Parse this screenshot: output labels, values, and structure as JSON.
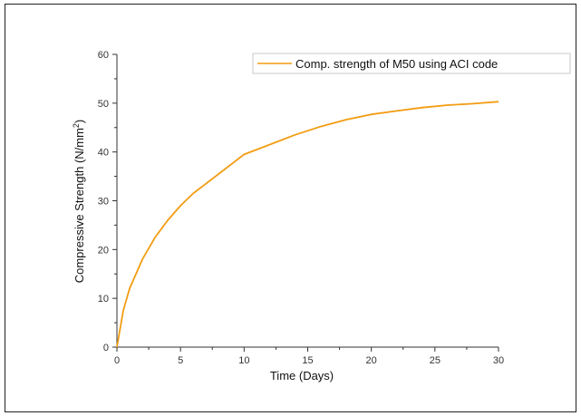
{
  "chart_data": {
    "type": "line",
    "xlabel": "Time (Days)",
    "ylabel_main": "Compressive Strength (N/mm",
    "ylabel_sup": "2",
    "ylabel_close": ")",
    "xlim": [
      0,
      30
    ],
    "ylim": [
      0,
      60
    ],
    "xticks": [
      0,
      5,
      10,
      15,
      20,
      25,
      30
    ],
    "yticks": [
      0,
      10,
      20,
      30,
      40,
      50,
      60
    ],
    "grid": false,
    "legend_position": "top-right",
    "series": [
      {
        "name": "Comp. strength of M50 using ACI code",
        "color": "#F39C12",
        "x": [
          0,
          0.5,
          1,
          2,
          3,
          4,
          5,
          6,
          7,
          8,
          10,
          12,
          14,
          16,
          18,
          20,
          22,
          24,
          26,
          28,
          30
        ],
        "y": [
          0,
          7.5,
          12,
          18,
          22.5,
          26,
          29,
          31.5,
          33.5,
          35.5,
          39.5,
          41.5,
          43.5,
          45.2,
          46.6,
          47.7,
          48.4,
          49.1,
          49.6,
          49.9,
          50.3
        ]
      }
    ]
  }
}
